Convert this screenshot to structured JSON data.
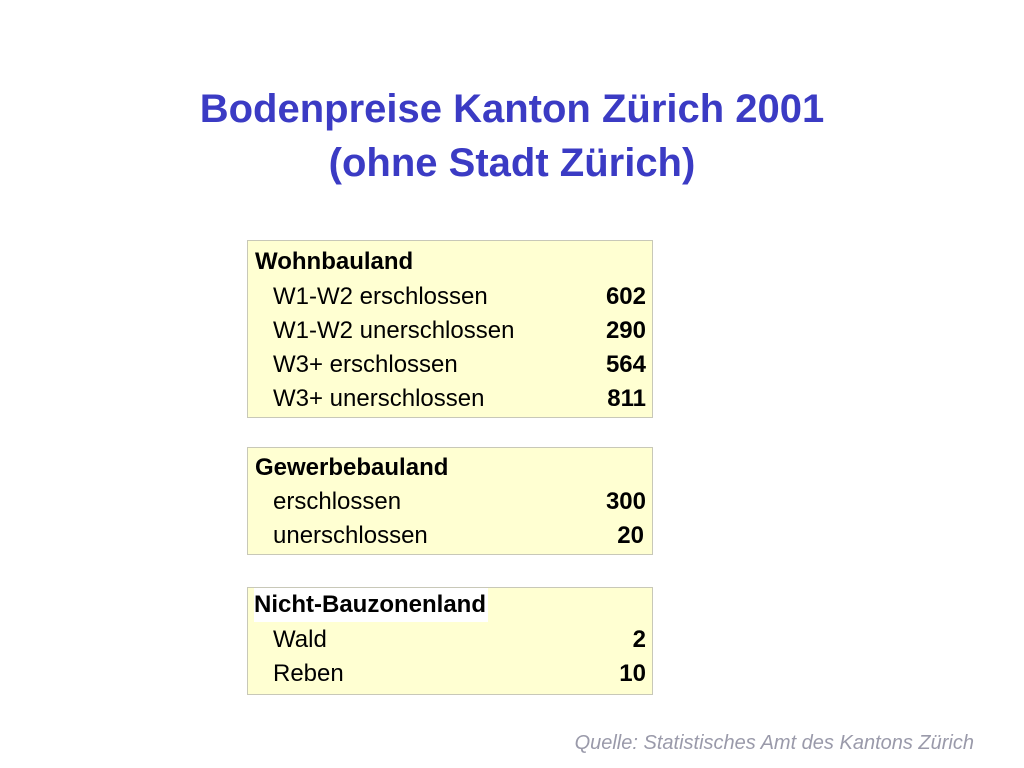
{
  "title": {
    "line1": "Bodenpreise Kanton Zürich 2001",
    "line2": "(ohne Stadt Zürich)"
  },
  "sections": [
    {
      "heading": "Wohnbauland",
      "rows": [
        {
          "label": "W1-W2 erschlossen",
          "value": "602"
        },
        {
          "label": "W1-W2 unerschlossen",
          "value": "290"
        },
        {
          "label": "W3+ erschlossen",
          "value": "564"
        },
        {
          "label": "W3+ unerschlossen",
          "value": "811"
        }
      ]
    },
    {
      "heading": "Gewerbebauland",
      "rows": [
        {
          "label": "erschlossen",
          "value": "300"
        },
        {
          "label": "unerschlossen",
          "value": "20"
        }
      ]
    },
    {
      "heading": "Nicht-Bauzonenland",
      "rows": [
        {
          "label": "Wald",
          "value": "2"
        },
        {
          "label": "Reben",
          "value": "10"
        }
      ]
    }
  ],
  "source": "Quelle: Statistisches Amt des Kantons Zürich"
}
